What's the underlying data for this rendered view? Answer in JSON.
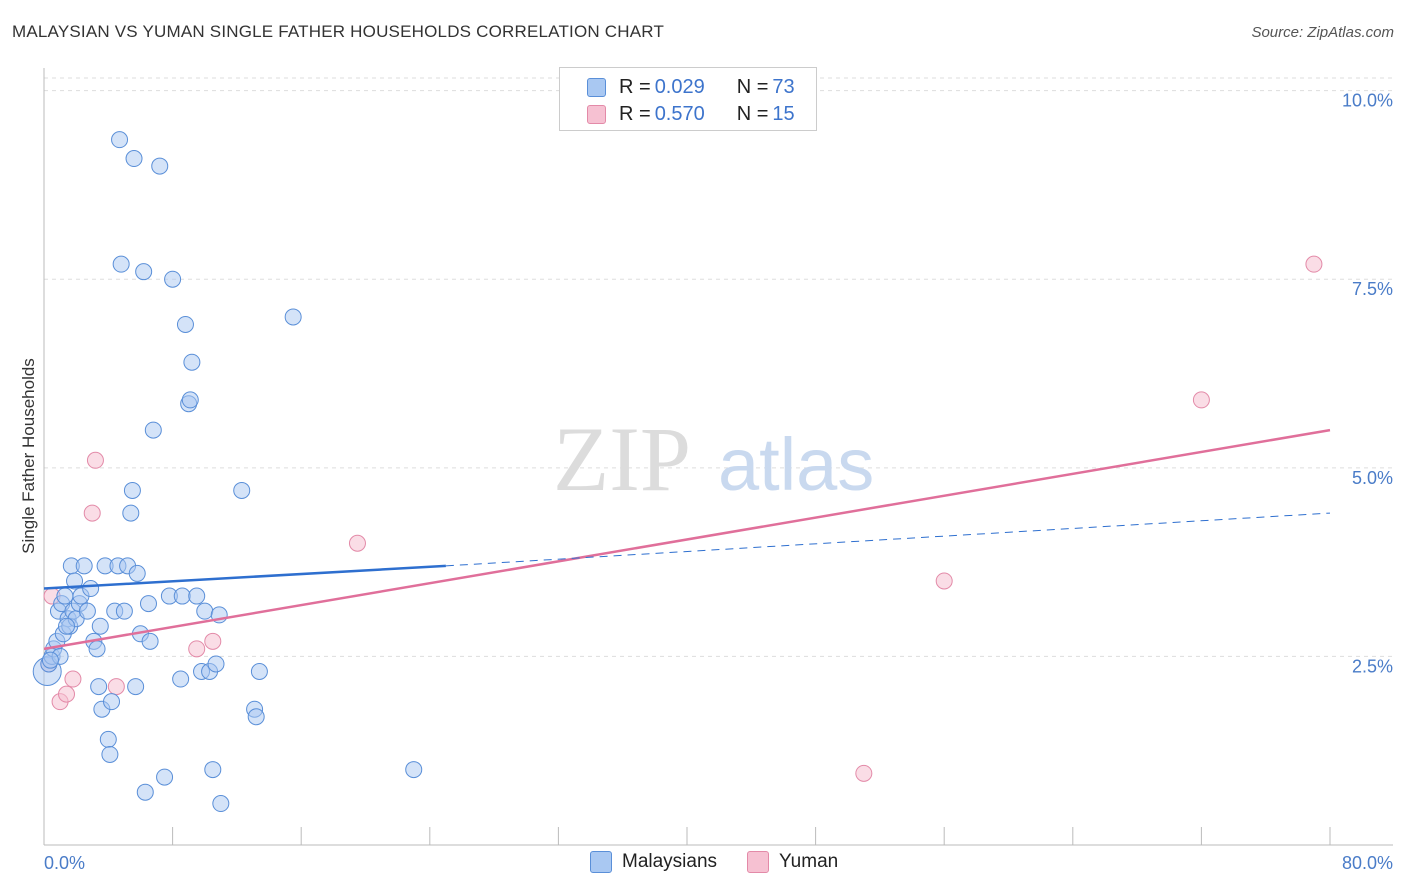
{
  "title": "MALAYSIAN VS YUMAN SINGLE FATHER HOUSEHOLDS CORRELATION CHART",
  "source": "Source: ZipAtlas.com",
  "watermark": {
    "zip": "ZIP",
    "atlas": "atlas"
  },
  "legend": {
    "series1": {
      "r_label": "R = ",
      "r_value": "0.029",
      "n_label": "N = ",
      "n_value": "73"
    },
    "series2": {
      "r_label": "R = ",
      "r_value": "0.570",
      "n_label": "N = ",
      "n_value": "15"
    }
  },
  "bottom_legend": {
    "s1": "Malaysians",
    "s2": "Yuman"
  },
  "colors": {
    "blue_fill": "#a9c8f2",
    "blue_stroke": "#5a8fd8",
    "blue_line": "#2e6fcf",
    "pink_fill": "#f6c1d2",
    "pink_stroke": "#e38aa8",
    "pink_line": "#e06f9a",
    "grid": "#dddddd",
    "tick_text": "#4a7cc8"
  },
  "chart_data": {
    "type": "scatter",
    "title": "MALAYSIAN VS YUMAN SINGLE FATHER HOUSEHOLDS CORRELATION CHART",
    "xlabel": "",
    "ylabel": "Single Father Households",
    "xlim": [
      0,
      80
    ],
    "ylim": [
      0,
      10.3
    ],
    "x_tick_labels": [
      "0.0%",
      "80.0%"
    ],
    "y_ticks": [
      2.5,
      5.0,
      7.5,
      10.0
    ],
    "y_tick_labels": [
      "2.5%",
      "5.0%",
      "7.5%",
      "10.0%"
    ],
    "x_minor_ticks": [
      0,
      8,
      16,
      24,
      32,
      40,
      48,
      56,
      64,
      72,
      80
    ],
    "series": [
      {
        "name": "Malaysians",
        "r": 0.029,
        "n": 73,
        "points": [
          [
            0.2,
            2.3
          ],
          [
            0.3,
            2.4
          ],
          [
            0.5,
            2.5
          ],
          [
            0.6,
            2.6
          ],
          [
            0.8,
            2.7
          ],
          [
            0.9,
            3.1
          ],
          [
            1.0,
            2.5
          ],
          [
            1.1,
            3.2
          ],
          [
            1.2,
            2.8
          ],
          [
            1.3,
            3.3
          ],
          [
            1.5,
            3.0
          ],
          [
            1.6,
            2.9
          ],
          [
            1.7,
            3.7
          ],
          [
            1.8,
            3.1
          ],
          [
            1.9,
            3.5
          ],
          [
            2.0,
            3.0
          ],
          [
            2.2,
            3.2
          ],
          [
            2.3,
            3.3
          ],
          [
            2.5,
            3.7
          ],
          [
            2.7,
            3.1
          ],
          [
            2.9,
            3.4
          ],
          [
            3.1,
            2.7
          ],
          [
            3.3,
            2.6
          ],
          [
            3.5,
            2.9
          ],
          [
            3.4,
            2.1
          ],
          [
            3.6,
            1.8
          ],
          [
            3.8,
            3.7
          ],
          [
            4.0,
            1.4
          ],
          [
            4.1,
            1.2
          ],
          [
            4.2,
            1.9
          ],
          [
            4.4,
            3.1
          ],
          [
            4.6,
            3.7
          ],
          [
            4.8,
            7.7
          ],
          [
            4.7,
            9.35
          ],
          [
            5.0,
            3.1
          ],
          [
            5.2,
            3.7
          ],
          [
            5.4,
            4.4
          ],
          [
            5.5,
            4.7
          ],
          [
            5.6,
            9.1
          ],
          [
            5.7,
            2.1
          ],
          [
            5.8,
            3.6
          ],
          [
            6.0,
            2.8
          ],
          [
            6.2,
            7.6
          ],
          [
            6.3,
            0.7
          ],
          [
            6.5,
            3.2
          ],
          [
            6.6,
            2.7
          ],
          [
            6.8,
            5.5
          ],
          [
            7.2,
            9.0
          ],
          [
            7.5,
            0.9
          ],
          [
            7.8,
            3.3
          ],
          [
            8.0,
            7.5
          ],
          [
            8.5,
            2.2
          ],
          [
            8.6,
            3.3
          ],
          [
            8.8,
            6.9
          ],
          [
            9.0,
            5.85
          ],
          [
            9.1,
            5.9
          ],
          [
            9.2,
            6.4
          ],
          [
            9.5,
            3.3
          ],
          [
            9.8,
            2.3
          ],
          [
            10.0,
            3.1
          ],
          [
            10.3,
            2.3
          ],
          [
            10.5,
            1.0
          ],
          [
            10.7,
            2.4
          ],
          [
            10.9,
            3.05
          ],
          [
            11.0,
            0.55
          ],
          [
            12.3,
            4.7
          ],
          [
            13.1,
            1.8
          ],
          [
            13.2,
            1.7
          ],
          [
            13.4,
            2.3
          ],
          [
            15.5,
            7.0
          ],
          [
            23.0,
            1.0
          ],
          [
            0.4,
            2.45
          ],
          [
            1.4,
            2.9
          ]
        ],
        "trend": {
          "x0": 0,
          "y0": 3.4,
          "x1": 25,
          "y1": 3.7,
          "dash_to_x": 80,
          "dash_to_y": 4.4
        }
      },
      {
        "name": "Yuman",
        "r": 0.57,
        "n": 15,
        "points": [
          [
            0.3,
            2.4
          ],
          [
            0.5,
            3.3
          ],
          [
            1.0,
            1.9
          ],
          [
            1.4,
            2.0
          ],
          [
            1.8,
            2.2
          ],
          [
            3.0,
            4.4
          ],
          [
            3.2,
            5.1
          ],
          [
            4.5,
            2.1
          ],
          [
            9.5,
            2.6
          ],
          [
            10.5,
            2.7
          ],
          [
            19.5,
            4.0
          ],
          [
            56.0,
            3.5
          ],
          [
            51.0,
            0.95
          ],
          [
            72.0,
            5.9
          ],
          [
            79.0,
            7.7
          ]
        ],
        "trend": {
          "x0": 0,
          "y0": 2.6,
          "x1": 80,
          "y1": 5.5
        }
      }
    ]
  }
}
